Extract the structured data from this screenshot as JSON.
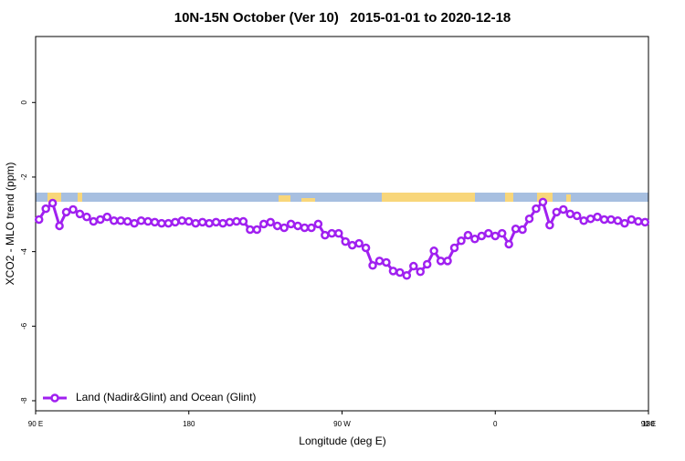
{
  "chart_data": {
    "type": "line",
    "title": "10N-15N October (Ver 10)   2015-01-01 to 2020-12-18",
    "xlabel": "Longitude (deg E)",
    "ylabel": "XCO2 - MLO trend (ppm)",
    "xlim": [
      90,
      450
    ],
    "ylim": [
      -8.27,
      1.77
    ],
    "xticks": [
      {
        "value": 90,
        "label": "90 E"
      },
      180,
      {
        "value": 270,
        "label": "90 W"
      },
      {
        "value": 360,
        "label": "0"
      },
      {
        "value": 450,
        "label": "90 E"
      },
      {
        "value": 540,
        "label": "180"
      }
    ],
    "yticks": [
      0,
      -2,
      -4,
      -6,
      -8
    ],
    "legend": "bottom-left",
    "x": [
      92,
      96,
      100,
      104,
      108,
      112,
      116,
      120,
      124,
      128,
      132,
      136,
      140,
      144,
      148,
      152,
      156,
      160,
      164,
      168,
      172,
      176,
      180,
      184,
      188,
      192,
      196,
      200,
      204,
      208,
      212,
      216,
      220,
      224,
      228,
      232,
      236,
      240,
      244,
      248,
      252,
      256,
      260,
      264,
      268,
      272,
      276,
      280,
      284,
      288,
      292,
      296,
      300,
      304,
      308,
      312,
      316,
      320,
      324,
      328,
      332,
      336,
      340,
      344,
      348,
      352,
      356,
      360,
      364,
      368,
      372,
      376,
      380,
      384,
      388,
      392,
      396,
      400,
      404,
      408,
      412,
      416,
      420,
      424,
      428,
      432,
      436,
      440,
      444,
      448
    ],
    "series": [
      {
        "name": "Land (Nadir&Glint) and Ocean (Glint)",
        "color": "#a020f0",
        "values": [
          -3.14,
          -2.85,
          -2.7,
          -3.31,
          -2.94,
          -2.87,
          -2.99,
          -3.07,
          -3.19,
          -3.14,
          -3.07,
          -3.17,
          -3.17,
          -3.19,
          -3.24,
          -3.17,
          -3.19,
          -3.21,
          -3.24,
          -3.24,
          -3.21,
          -3.17,
          -3.19,
          -3.24,
          -3.21,
          -3.24,
          -3.21,
          -3.24,
          -3.21,
          -3.19,
          -3.19,
          -3.41,
          -3.41,
          -3.26,
          -3.21,
          -3.31,
          -3.36,
          -3.26,
          -3.31,
          -3.36,
          -3.36,
          -3.26,
          -3.56,
          -3.51,
          -3.51,
          -3.73,
          -3.83,
          -3.78,
          -3.9,
          -4.37,
          -4.25,
          -4.29,
          -4.52,
          -4.56,
          -4.64,
          -4.39,
          -4.54,
          -4.34,
          -3.98,
          -4.25,
          -4.25,
          -3.9,
          -3.71,
          -3.56,
          -3.66,
          -3.58,
          -3.51,
          -3.58,
          -3.51,
          -3.8,
          -3.39,
          -3.41,
          -3.12,
          -2.85,
          -2.67,
          -3.29,
          -2.94,
          -2.87,
          -2.99,
          -3.04,
          -3.17,
          -3.12,
          -3.07,
          -3.14,
          -3.14,
          -3.17,
          -3.24,
          -3.14,
          -3.19,
          -3.21
        ]
      }
    ]
  }
}
